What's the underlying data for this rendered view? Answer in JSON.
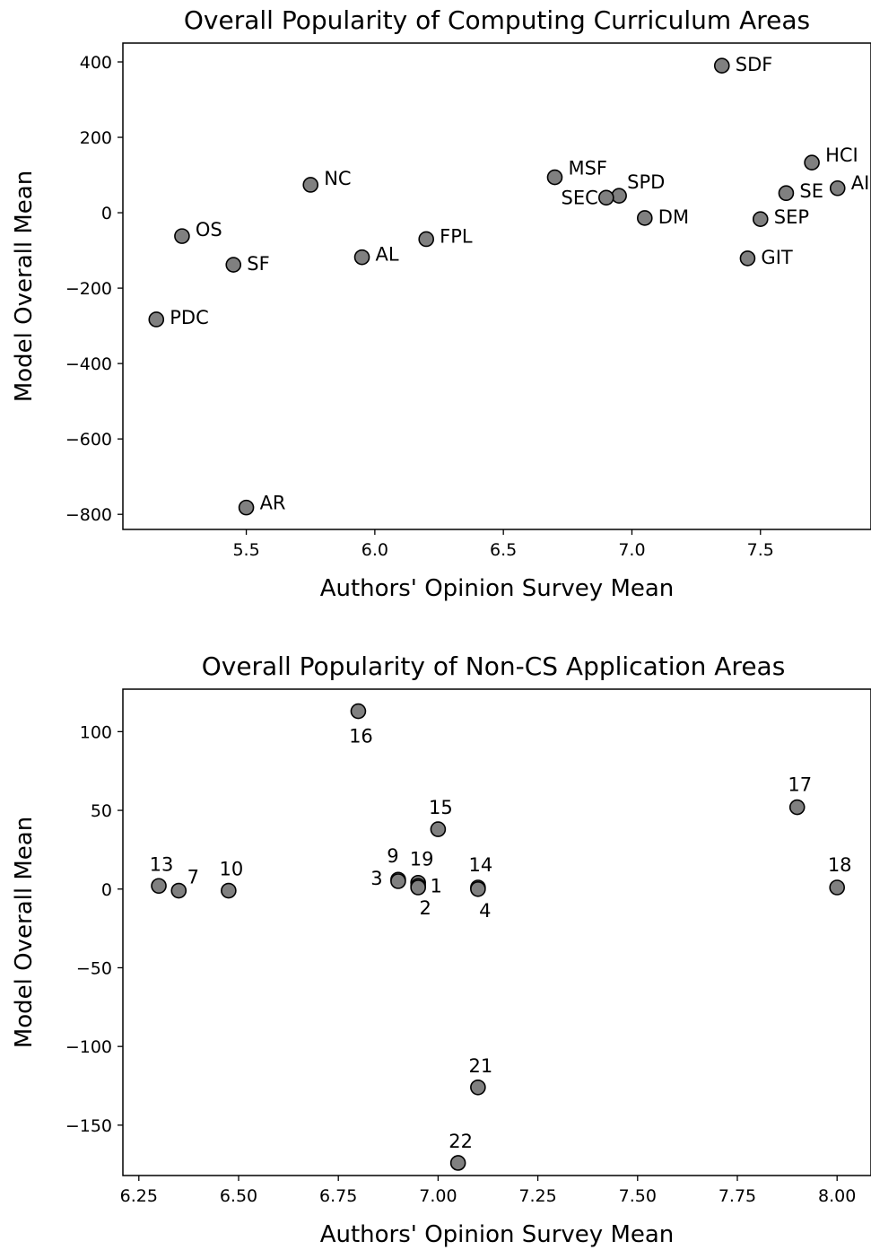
{
  "colors": {
    "marker_fill": "#808080",
    "marker_edge": "#000000",
    "axis": "#000000",
    "background": "#ffffff"
  },
  "chart_data": [
    {
      "type": "scatter",
      "title": "Overall Popularity of Computing Curriculum Areas",
      "xlabel": "Authors' Opinion Survey Mean",
      "ylabel": "Model Overall Mean",
      "xlim": [
        5.02,
        7.93
      ],
      "ylim": [
        -840,
        450
      ],
      "xticks": [
        "5.5",
        "6.0",
        "6.5",
        "7.0",
        "7.5"
      ],
      "yticks": [
        "400",
        "200",
        "0",
        "−200",
        "−400",
        "−600",
        "−800"
      ],
      "grid": false,
      "points": [
        {
          "label": "SDF",
          "x": 7.35,
          "y": 390
        },
        {
          "label": "HCI",
          "x": 7.7,
          "y": 133
        },
        {
          "label": "AI",
          "x": 7.8,
          "y": 65
        },
        {
          "label": "SE",
          "x": 7.6,
          "y": 52
        },
        {
          "label": "SEP",
          "x": 7.5,
          "y": -17
        },
        {
          "label": "GIT",
          "x": 7.45,
          "y": -121
        },
        {
          "label": "DM",
          "x": 7.05,
          "y": -14
        },
        {
          "label": "SPD",
          "x": 6.95,
          "y": 45
        },
        {
          "label": "SEC",
          "x": 6.9,
          "y": 40
        },
        {
          "label": "MSF",
          "x": 6.7,
          "y": 94
        },
        {
          "label": "FPL",
          "x": 6.2,
          "y": -70
        },
        {
          "label": "AL",
          "x": 5.95,
          "y": -118
        },
        {
          "label": "NC",
          "x": 5.75,
          "y": 74
        },
        {
          "label": "OS",
          "x": 5.25,
          "y": -62
        },
        {
          "label": "SF",
          "x": 5.45,
          "y": -138
        },
        {
          "label": "PDC",
          "x": 5.15,
          "y": -283
        },
        {
          "label": "AR",
          "x": 5.5,
          "y": -782
        }
      ]
    },
    {
      "type": "scatter",
      "title": "Overall Popularity of Non-CS Application Areas",
      "xlabel": "Authors' Opinion Survey Mean",
      "ylabel": "Model Overall Mean",
      "xlim": [
        6.21,
        8.085
      ],
      "ylim": [
        -182,
        127
      ],
      "xticks": [
        "6.25",
        "6.50",
        "6.75",
        "7.00",
        "7.25",
        "7.50",
        "7.75",
        "8.00"
      ],
      "yticks": [
        "100",
        "50",
        "0",
        "−50",
        "−100",
        "−150"
      ],
      "grid": false,
      "points": [
        {
          "label": "16",
          "x": 6.8,
          "y": 113
        },
        {
          "label": "17",
          "x": 7.9,
          "y": 52
        },
        {
          "label": "15",
          "x": 7.0,
          "y": 38
        },
        {
          "label": "13",
          "x": 6.3,
          "y": 2
        },
        {
          "label": "7",
          "x": 6.35,
          "y": -1
        },
        {
          "label": "10",
          "x": 6.475,
          "y": -1
        },
        {
          "label": "9",
          "x": 6.9,
          "y": 6
        },
        {
          "label": "3",
          "x": 6.9,
          "y": 5
        },
        {
          "label": "19",
          "x": 6.95,
          "y": 4
        },
        {
          "label": "1",
          "x": 6.95,
          "y": 2
        },
        {
          "label": "2",
          "x": 6.95,
          "y": 1
        },
        {
          "label": "14",
          "x": 7.1,
          "y": 1
        },
        {
          "label": "4",
          "x": 7.1,
          "y": 0
        },
        {
          "label": "18",
          "x": 8.0,
          "y": 1
        },
        {
          "label": "21",
          "x": 7.1,
          "y": -126
        },
        {
          "label": "22",
          "x": 7.05,
          "y": -174
        }
      ]
    }
  ]
}
